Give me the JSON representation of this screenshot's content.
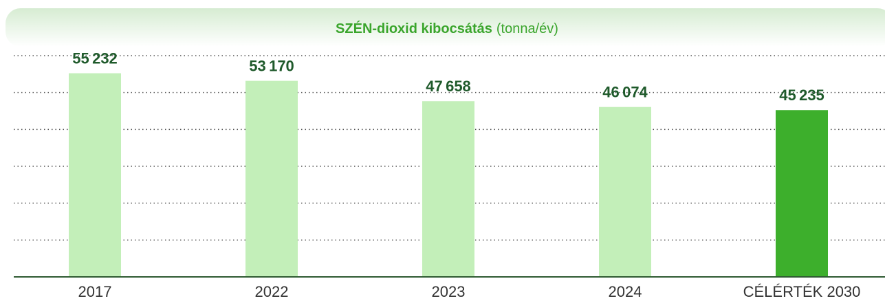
{
  "chart_data": {
    "type": "bar",
    "title": "SZÉN-dioxid kibocsátás",
    "subtitle": "(tonna/év)",
    "categories": [
      "2017",
      "2022",
      "2023",
      "2024",
      "CÉLÉRTÉK 2030"
    ],
    "values": [
      55232,
      53170,
      47658,
      46074,
      45235
    ],
    "value_labels": [
      "55 232",
      "53 170",
      "47 658",
      "46 074",
      "45 235"
    ],
    "colors": [
      "#c3efb9",
      "#c3efb9",
      "#c3efb9",
      "#c3efb9",
      "#3daf2c"
    ],
    "ylim": [
      0,
      60000
    ],
    "yticks": [
      0,
      10000,
      20000,
      30000,
      40000,
      50000,
      60000
    ],
    "grid": true
  }
}
